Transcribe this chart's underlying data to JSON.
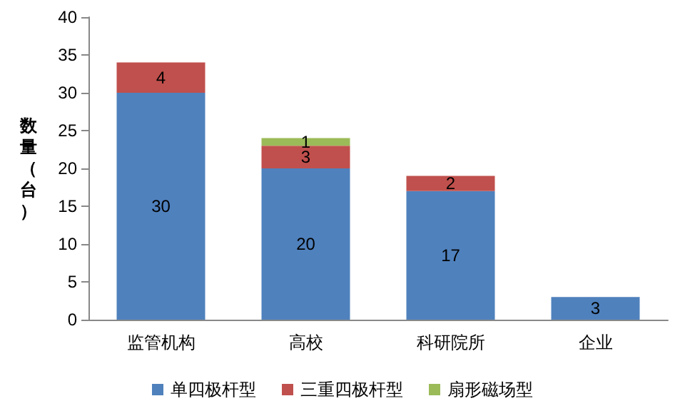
{
  "chart_data": {
    "type": "bar",
    "stacked": true,
    "ylabel": "数量（台）",
    "categories": [
      "监管机构",
      "高校",
      "科研院所",
      "企业"
    ],
    "series": [
      {
        "name": "单四极杆型",
        "color": "#4f81bd",
        "values": [
          30,
          20,
          17,
          3
        ]
      },
      {
        "name": "三重四极杆型",
        "color": "#c0504d",
        "values": [
          4,
          3,
          2,
          null
        ]
      },
      {
        "name": "扇形磁场型",
        "color": "#9bbb59",
        "values": [
          null,
          1,
          null,
          null
        ]
      }
    ],
    "ylim": [
      0,
      40
    ],
    "yticks": [
      0,
      5,
      10,
      15,
      20,
      25,
      30,
      35,
      40
    ],
    "grid": false,
    "legend": "bottom",
    "data_labels": true
  }
}
